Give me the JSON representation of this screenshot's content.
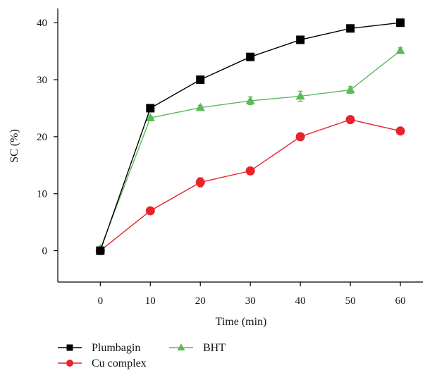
{
  "chart_data": {
    "type": "line",
    "title": "",
    "xlabel": "Time (min)",
    "ylabel": "SC (%)",
    "x": [
      0,
      10,
      20,
      30,
      40,
      50,
      60
    ],
    "xlim": [
      -8.5,
      64.5
    ],
    "ylim": [
      -5.5,
      42.5
    ],
    "xticks": [
      0,
      10,
      20,
      30,
      40,
      50,
      60
    ],
    "yticks": [
      0,
      10,
      20,
      30,
      40
    ],
    "xtick_labels": [
      "0",
      "10",
      "20",
      "30",
      "40",
      "50",
      "60"
    ],
    "ytick_labels": [
      "0",
      "10",
      "20",
      "30",
      "40"
    ],
    "grid": false,
    "legend_position": "bottom-left",
    "series": [
      {
        "name": "Plumbagin",
        "color": "#000000",
        "marker": "square",
        "values": [
          0,
          25,
          30,
          34,
          37,
          39,
          40
        ],
        "errors": [
          0,
          0,
          0,
          0,
          0,
          0,
          0
        ]
      },
      {
        "name": "Cu complex",
        "color": "#e8232a",
        "marker": "circle",
        "values": [
          0,
          7,
          12,
          14,
          20,
          23,
          21
        ],
        "errors": [
          0,
          0.4,
          0.8,
          0.6,
          0.5,
          0.4,
          0.4
        ]
      },
      {
        "name": "BHT",
        "color": "#5cb85c",
        "marker": "triangle",
        "values": [
          0.3,
          23.3,
          25.1,
          26.3,
          27.1,
          28.2,
          35.1
        ],
        "errors": [
          0,
          0.3,
          0.4,
          0.7,
          0.9,
          0.6,
          0.5
        ]
      }
    ],
    "legend": [
      {
        "name": "Plumbagin"
      },
      {
        "name": "BHT"
      },
      {
        "name": "Cu complex"
      }
    ]
  }
}
